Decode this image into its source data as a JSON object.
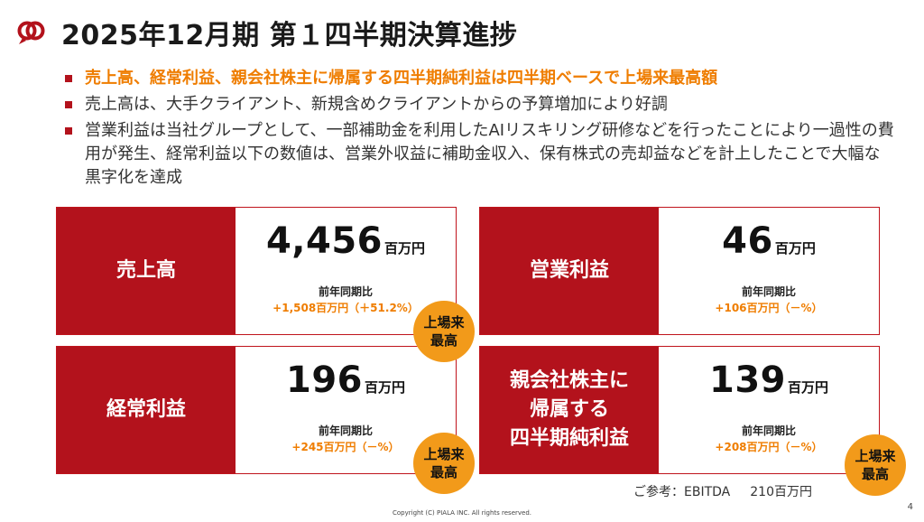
{
  "header": {
    "title": "2025年12月期 第１四半期決算進捗"
  },
  "bullets": [
    "売上高、経常利益、親会社株主に帰属する四半期純利益は四半期ベースで上場来最高額",
    "売上高は、大手クライアント、新規含めクライアントからの予算増加により好調",
    "営業利益は当社グループとして、一部補助金を利用したAIリスキリング研修などを行ったことにより一過性の費用が発生、経常利益以下の数値は、営業外収益に補助金収入、保有株式の売却益などを計上したことで大幅な黒字化を達成"
  ],
  "cards": [
    {
      "label_lines": [
        "売上高"
      ],
      "value": "4,456",
      "unit": "百万円",
      "yoy_label": "前年同期比",
      "yoy_value": "+1,508百万円（＋51.2%）"
    },
    {
      "label_lines": [
        "営業利益"
      ],
      "value": "46",
      "unit": "百万円",
      "yoy_label": "前年同期比",
      "yoy_value": "+106百万円（－%）"
    },
    {
      "label_lines": [
        "経常利益"
      ],
      "value": "196",
      "unit": "百万円",
      "yoy_label": "前年同期比",
      "yoy_value": "+245百万円（－%）"
    },
    {
      "label_lines": [
        "親会社株主に",
        "帰属する",
        "四半期純利益"
      ],
      "value": "139",
      "unit": "百万円",
      "yoy_label": "前年同期比",
      "yoy_value": "+208百万円（－%）"
    }
  ],
  "badge": {
    "line1": "上場来",
    "line2": "最高"
  },
  "note": {
    "label": "ご参考：EBITDA",
    "value": "210百万円"
  },
  "footer": {
    "copyright": "Copyright (C) PIALA INC. All rights reserved.",
    "page_number": "4"
  },
  "colors": {
    "accent_red": "#b3121c",
    "highlight_orange": "#ef7d00",
    "badge_orange": "#f29a1a"
  },
  "icons": {
    "logo": "piala-logo-icon"
  }
}
